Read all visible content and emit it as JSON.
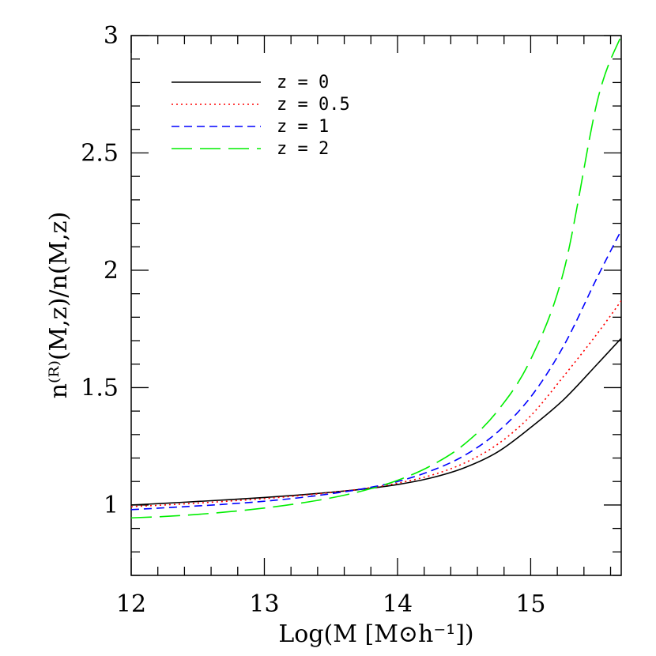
{
  "chart_data": {
    "type": "line",
    "xlabel": "Log(M [M⊙h⁻¹])",
    "ylabel": "n⁽ᴿ⁾(M,z)/n(M,z)",
    "xlim": [
      12,
      15.68
    ],
    "ylim": [
      0.7,
      3.0
    ],
    "x_ticks": [
      "12",
      "13",
      "14",
      "15"
    ],
    "y_ticks": [
      "1",
      "1.5",
      "2",
      "2.5",
      "3"
    ],
    "grid": false,
    "legend_position": "top-left",
    "x": [
      12.0,
      12.25,
      12.5,
      12.75,
      13.0,
      13.25,
      13.5,
      13.75,
      14.0,
      14.25,
      14.5,
      14.75,
      15.0,
      15.25,
      15.5,
      15.68
    ],
    "series": [
      {
        "name": "z = 0",
        "style": "solid",
        "color": "#000000",
        "values": [
          1.0,
          1.007,
          1.015,
          1.023,
          1.032,
          1.042,
          1.054,
          1.068,
          1.087,
          1.115,
          1.158,
          1.225,
          1.33,
          1.45,
          1.6,
          1.71
        ]
      },
      {
        "name": "z = 0.5",
        "style": "dotted",
        "color": "#ff0000",
        "values": [
          0.993,
          1.0,
          1.008,
          1.017,
          1.027,
          1.039,
          1.053,
          1.07,
          1.093,
          1.126,
          1.178,
          1.258,
          1.38,
          1.55,
          1.73,
          1.87
        ]
      },
      {
        "name": "z = 1",
        "style": "dashed",
        "color": "#0000ff",
        "values": [
          0.98,
          0.988,
          0.996,
          1.005,
          1.016,
          1.03,
          1.048,
          1.07,
          1.1,
          1.145,
          1.21,
          1.31,
          1.46,
          1.68,
          1.97,
          2.17
        ]
      },
      {
        "name": "z = 2",
        "style": "longdash",
        "color": "#00ee00",
        "values": [
          0.945,
          0.951,
          0.96,
          0.972,
          0.987,
          1.006,
          1.03,
          1.062,
          1.105,
          1.167,
          1.258,
          1.4,
          1.62,
          2.0,
          2.72,
          3.0
        ]
      }
    ]
  }
}
